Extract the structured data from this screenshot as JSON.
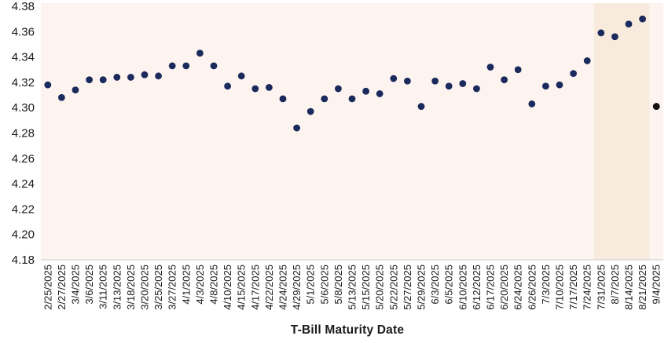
{
  "chart_data": {
    "type": "scatter",
    "title": "",
    "xlabel": "T-Bill Maturity Date",
    "ylabel": "",
    "ylim": [
      4.18,
      4.38
    ],
    "yticks": [
      4.18,
      4.2,
      4.22,
      4.24,
      4.26,
      4.28,
      4.3,
      4.32,
      4.34,
      4.36,
      4.38
    ],
    "categories": [
      "2/25/2025",
      "2/27/2025",
      "3/4/2025",
      "3/6/2025",
      "3/11/2025",
      "3/13/2025",
      "3/18/2025",
      "3/20/2025",
      "3/25/2025",
      "3/27/2025",
      "4/1/2025",
      "4/3/2025",
      "4/8/2025",
      "4/10/2025",
      "4/15/2025",
      "4/17/2025",
      "4/22/2025",
      "4/24/2025",
      "4/29/2025",
      "5/1/2025",
      "5/6/2025",
      "5/8/2025",
      "5/13/2025",
      "5/15/2025",
      "5/20/2025",
      "5/22/2025",
      "5/27/2025",
      "5/29/2025",
      "6/3/2025",
      "6/5/2025",
      "6/10/2025",
      "6/12/2025",
      "6/17/2025",
      "6/20/2025",
      "6/24/2025",
      "6/26/2025",
      "7/3/2025",
      "7/10/2025",
      "7/17/2025",
      "7/24/2025",
      "7/31/2025",
      "8/7/2025",
      "8/14/2025",
      "8/21/2025",
      "9/4/2025"
    ],
    "values": [
      4.318,
      4.308,
      4.314,
      4.322,
      4.322,
      4.324,
      4.324,
      4.326,
      4.325,
      4.333,
      4.333,
      4.343,
      4.333,
      4.317,
      4.325,
      4.315,
      4.316,
      4.307,
      4.284,
      4.297,
      4.307,
      4.315,
      4.307,
      4.313,
      4.311,
      4.323,
      4.321,
      4.301,
      4.321,
      4.317,
      4.319,
      4.315,
      4.332,
      4.322,
      4.33,
      4.303,
      4.317,
      4.318,
      4.327,
      4.337,
      4.359,
      4.356,
      4.366,
      4.37,
      4.301
    ],
    "grid": false,
    "legend": "none",
    "point_color": "#1b2a5c",
    "last_point_color": "#111111",
    "plot_bg": "#fdf4f0",
    "highlight": {
      "start_index": 40,
      "end_index": 43,
      "color": "#f8ebdd"
    },
    "axis_color": "#cccccc",
    "text_color": "#1a1a1a"
  }
}
